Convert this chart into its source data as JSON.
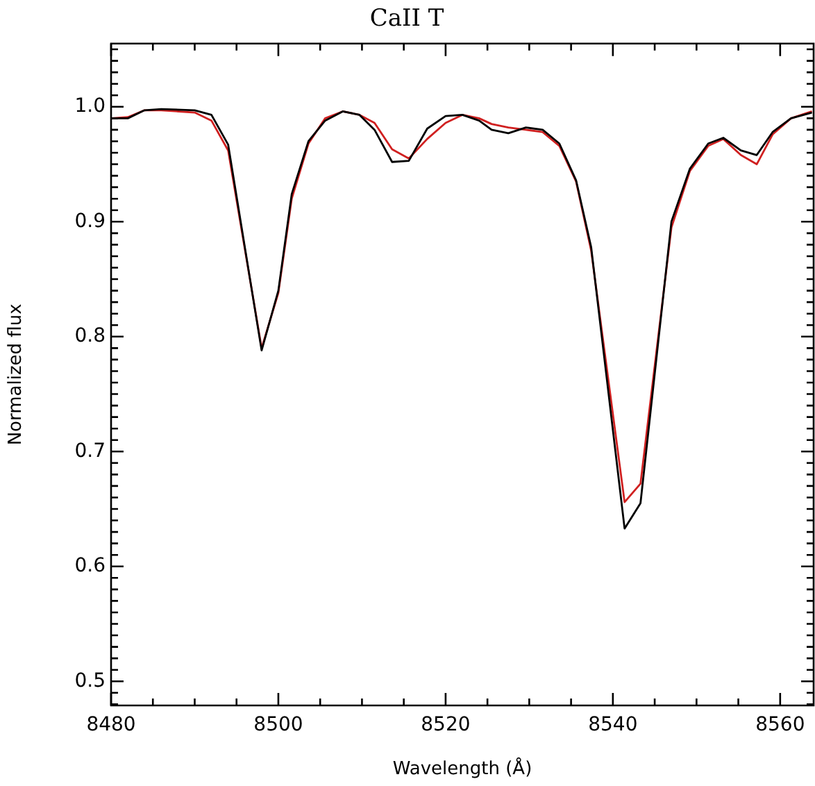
{
  "chart_data": {
    "type": "line",
    "title": "CaII T",
    "xlabel": "Wavelength (Å)",
    "ylabel": "Normalized flux",
    "x": [
      8480,
      8482,
      8484,
      8486,
      8490,
      8492,
      8494,
      8498,
      8500,
      8501.6,
      8503.6,
      8505.6,
      8507.7,
      8509.7,
      8511.5,
      8513.6,
      8515.6,
      8517.8,
      8520,
      8522,
      8524,
      8525.5,
      8527.5,
      8529.6,
      8531.6,
      8533.6,
      8535.6,
      8537.4,
      8541.4,
      8543.3,
      8547,
      8549.2,
      8551.4,
      8553.2,
      8555.3,
      8557.2,
      8559.1,
      8561.3,
      8563.8
    ],
    "series": [
      {
        "color": "#000000",
        "values": [
          0.99,
          0.99,
          0.997,
          0.998,
          0.997,
          0.993,
          0.967,
          0.788,
          0.84,
          0.924,
          0.97,
          0.988,
          0.996,
          0.993,
          0.98,
          0.952,
          0.953,
          0.981,
          0.992,
          0.993,
          0.988,
          0.98,
          0.977,
          0.982,
          0.98,
          0.968,
          0.936,
          0.878,
          0.633,
          0.655,
          0.9,
          0.946,
          0.968,
          0.973,
          0.962,
          0.958,
          0.978,
          0.99,
          0.995
        ]
      },
      {
        "color": "#d02020",
        "values": [
          0.99,
          0.991,
          0.997,
          0.997,
          0.995,
          0.988,
          0.962,
          0.79,
          0.838,
          0.92,
          0.968,
          0.99,
          0.996,
          0.993,
          0.986,
          0.963,
          0.955,
          0.972,
          0.986,
          0.993,
          0.99,
          0.985,
          0.982,
          0.98,
          0.978,
          0.966,
          0.935,
          0.875,
          0.656,
          0.672,
          0.895,
          0.944,
          0.966,
          0.972,
          0.958,
          0.95,
          0.976,
          0.99,
          0.996
        ]
      }
    ],
    "xlim": [
      8480,
      8564
    ],
    "xticks": [
      8480,
      {
        "value": 8485,
        "label": null
      },
      8500,
      {
        "value": 8490,
        "label": null
      },
      {
        "value": 8495,
        "label": null
      },
      {
        "value": 8505,
        "label": null
      },
      {
        "value": 8510,
        "label": null
      },
      {
        "value": 8515,
        "label": null
      },
      8520,
      {
        "value": 8525,
        "label": null
      },
      {
        "value": 8530,
        "label": null
      },
      {
        "value": 8535,
        "label": null
      },
      8540,
      {
        "value": 8545,
        "label": null
      },
      {
        "value": 8550,
        "label": null
      },
      {
        "value": 8555,
        "label": null
      },
      8560
    ],
    "ylim": [
      0.479,
      1.055
    ],
    "yticks": [
      {
        "value": 0.48,
        "label": null
      },
      {
        "value": 0.49,
        "label": null
      },
      {
        "value": 0.5,
        "label": "0.5"
      },
      {
        "value": 0.51,
        "label": null
      },
      {
        "value": 0.52,
        "label": null
      },
      {
        "value": 0.53,
        "label": null
      },
      {
        "value": 0.54,
        "label": null
      },
      {
        "value": 0.55,
        "label": null
      },
      {
        "value": 0.56,
        "label": null
      },
      {
        "value": 0.57,
        "label": null
      },
      {
        "value": 0.58,
        "label": null
      },
      {
        "value": 0.59,
        "label": null
      },
      {
        "value": 0.6,
        "label": "0.6"
      },
      {
        "value": 0.61,
        "label": null
      },
      {
        "value": 0.62,
        "label": null
      },
      {
        "value": 0.63,
        "label": null
      },
      {
        "value": 0.64,
        "label": null
      },
      {
        "value": 0.65,
        "label": null
      },
      {
        "value": 0.66,
        "label": null
      },
      {
        "value": 0.67,
        "label": null
      },
      {
        "value": 0.68,
        "label": null
      },
      {
        "value": 0.69,
        "label": null
      },
      {
        "value": 0.7,
        "label": "0.7"
      },
      {
        "value": 0.71,
        "label": null
      },
      {
        "value": 0.72,
        "label": null
      },
      {
        "value": 0.73,
        "label": null
      },
      {
        "value": 0.74,
        "label": null
      },
      {
        "value": 0.75,
        "label": null
      },
      {
        "value": 0.76,
        "label": null
      },
      {
        "value": 0.77,
        "label": null
      },
      {
        "value": 0.78,
        "label": null
      },
      {
        "value": 0.79,
        "label": null
      },
      {
        "value": 0.8,
        "label": "0.8"
      },
      {
        "value": 0.81,
        "label": null
      },
      {
        "value": 0.82,
        "label": null
      },
      {
        "value": 0.83,
        "label": null
      },
      {
        "value": 0.84,
        "label": null
      },
      {
        "value": 0.85,
        "label": null
      },
      {
        "value": 0.86,
        "label": null
      },
      {
        "value": 0.87,
        "label": null
      },
      {
        "value": 0.88,
        "label": null
      },
      {
        "value": 0.89,
        "label": null
      },
      {
        "value": 0.9,
        "label": "0.9"
      },
      {
        "value": 0.91,
        "label": null
      },
      {
        "value": 0.92,
        "label": null
      },
      {
        "value": 0.93,
        "label": null
      },
      {
        "value": 0.94,
        "label": null
      },
      {
        "value": 0.95,
        "label": null
      },
      {
        "value": 0.96,
        "label": null
      },
      {
        "value": 0.97,
        "label": null
      },
      {
        "value": 0.98,
        "label": null
      },
      {
        "value": 0.99,
        "label": null
      },
      {
        "value": 1.0,
        "label": "1.0"
      },
      {
        "value": 1.01,
        "label": null
      },
      {
        "value": 1.02,
        "label": null
      },
      {
        "value": 1.03,
        "label": null
      },
      {
        "value": 1.04,
        "label": null
      },
      {
        "value": 1.05,
        "label": null
      }
    ],
    "grid": false,
    "legend": false,
    "marker": "none",
    "line_style": "solid"
  }
}
